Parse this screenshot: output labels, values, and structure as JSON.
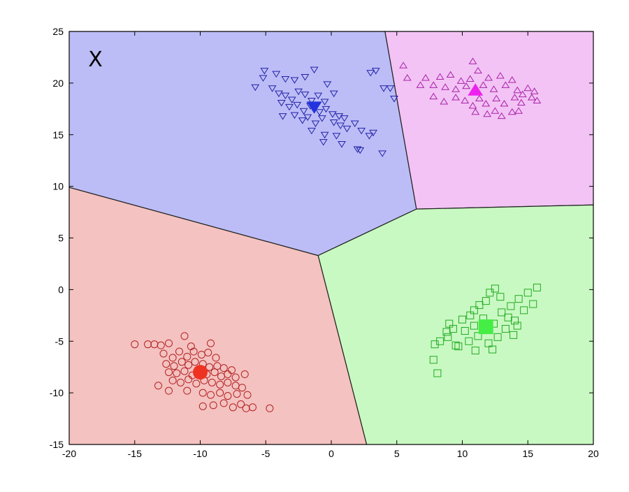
{
  "chart_data": {
    "type": "scatter",
    "title": "",
    "xlabel": "",
    "ylabel": "",
    "xlim": [
      -20,
      20
    ],
    "ylim": [
      -15,
      25
    ],
    "xticks": [
      "-20",
      "-15",
      "-10",
      "-5",
      "0",
      "5",
      "10",
      "15",
      "20"
    ],
    "yticks": [
      "-15",
      "-10",
      "-5",
      "0",
      "5",
      "10",
      "15",
      "20",
      "25"
    ],
    "grid": false,
    "legend": "none",
    "annotation": {
      "text": "X",
      "x": -18,
      "y": 22.3
    },
    "regions": [
      {
        "name": "red",
        "color": "#f4c2c0",
        "polygon": [
          [
            -20,
            9.9
          ],
          [
            -1,
            3.3
          ],
          [
            2.7,
            -15
          ],
          [
            -20,
            -15
          ]
        ]
      },
      {
        "name": "blue",
        "color": "#bcbdf6",
        "polygon": [
          [
            -20,
            25
          ],
          [
            4.1,
            25
          ],
          [
            6.5,
            7.8
          ],
          [
            -1,
            3.3
          ],
          [
            -20,
            9.9
          ]
        ]
      },
      {
        "name": "magenta",
        "color": "#f2c3f4",
        "polygon": [
          [
            4.1,
            25
          ],
          [
            20,
            25
          ],
          [
            20,
            8.2
          ],
          [
            6.5,
            7.8
          ]
        ]
      },
      {
        "name": "green",
        "color": "#c9f9c2",
        "polygon": [
          [
            6.5,
            7.8
          ],
          [
            20,
            8.2
          ],
          [
            20,
            -15
          ],
          [
            2.7,
            -15
          ],
          [
            -1,
            3.3
          ]
        ]
      }
    ],
    "series": [
      {
        "color": "#b22222",
        "marker": "circle",
        "centroid": [
          -10,
          -8
        ],
        "points": [
          [
            -15,
            -5.3
          ],
          [
            -14,
            -5.3
          ],
          [
            -13.5,
            -5.3
          ],
          [
            -13,
            -5.4
          ],
          [
            -12.4,
            -5.2
          ],
          [
            -11.2,
            -4.5
          ],
          [
            -10.7,
            -5.5
          ],
          [
            -9.2,
            -5.2
          ],
          [
            -12.8,
            -6.2
          ],
          [
            -12.1,
            -6.6
          ],
          [
            -11.6,
            -6.0
          ],
          [
            -11.0,
            -6.5
          ],
          [
            -10.5,
            -6.0
          ],
          [
            -9.9,
            -6.3
          ],
          [
            -9.4,
            -6.1
          ],
          [
            -8.8,
            -6.6
          ],
          [
            -12.6,
            -7.2
          ],
          [
            -12.0,
            -7.4
          ],
          [
            -11.4,
            -7.0
          ],
          [
            -10.9,
            -7.3
          ],
          [
            -10.4,
            -7.0
          ],
          [
            -9.8,
            -7.2
          ],
          [
            -9.3,
            -7.5
          ],
          [
            -8.7,
            -7.4
          ],
          [
            -8.2,
            -7.6
          ],
          [
            -7.6,
            -7.8
          ],
          [
            -12.4,
            -8.0
          ],
          [
            -11.8,
            -8.1
          ],
          [
            -11.2,
            -7.9
          ],
          [
            -10.6,
            -8.3
          ],
          [
            -9.5,
            -8.2
          ],
          [
            -8.9,
            -8.0
          ],
          [
            -8.4,
            -8.4
          ],
          [
            -7.9,
            -8.2
          ],
          [
            -7.3,
            -8.5
          ],
          [
            -6.6,
            -8.2
          ],
          [
            -12.1,
            -8.8
          ],
          [
            -11.5,
            -9.0
          ],
          [
            -10.9,
            -8.7
          ],
          [
            -10.3,
            -9.1
          ],
          [
            -9.7,
            -8.8
          ],
          [
            -9.1,
            -9.0
          ],
          [
            -8.5,
            -9.2
          ],
          [
            -7.9,
            -9.0
          ],
          [
            -7.3,
            -9.3
          ],
          [
            -6.8,
            -9.5
          ],
          [
            -13.2,
            -9.3
          ],
          [
            -12.4,
            -9.8
          ],
          [
            -11.0,
            -9.8
          ],
          [
            -9.8,
            -10.0
          ],
          [
            -9.2,
            -10.2
          ],
          [
            -8.5,
            -10.0
          ],
          [
            -7.9,
            -10.3
          ],
          [
            -7.2,
            -10.1
          ],
          [
            -6.4,
            -10.2
          ],
          [
            -9.0,
            -11.2
          ],
          [
            -8.2,
            -11.0
          ],
          [
            -7.5,
            -11.4
          ],
          [
            -6.9,
            -11.1
          ],
          [
            -6.5,
            -11.5
          ],
          [
            -6.0,
            -11.4
          ],
          [
            -4.7,
            -11.5
          ],
          [
            -9.8,
            -11.3
          ]
        ]
      },
      {
        "color": "#2222aa",
        "marker": "triangle-down",
        "centroid": [
          -1.3,
          17.7
        ],
        "points": [
          [
            -5.8,
            19.6
          ],
          [
            -5.2,
            20.5
          ],
          [
            -5.1,
            21.2
          ],
          [
            -4.2,
            20.9
          ],
          [
            -3.5,
            20.4
          ],
          [
            -2.8,
            20.3
          ],
          [
            -2.0,
            20.6
          ],
          [
            -1.3,
            21.3
          ],
          [
            -0.3,
            19.9
          ],
          [
            0.2,
            19.0
          ],
          [
            3.4,
            21.2
          ],
          [
            3.0,
            21.0
          ],
          [
            4.0,
            19.5
          ],
          [
            4.5,
            19.5
          ],
          [
            4.8,
            18.5
          ],
          [
            -4.5,
            19.5
          ],
          [
            -4.0,
            19.0
          ],
          [
            -3.5,
            18.8
          ],
          [
            -3.0,
            18.4
          ],
          [
            -2.5,
            19.2
          ],
          [
            -2.0,
            18.9
          ],
          [
            -1.5,
            18.3
          ],
          [
            -1.0,
            18.8
          ],
          [
            -0.5,
            18.2
          ],
          [
            -3.8,
            18.1
          ],
          [
            -3.2,
            17.7
          ],
          [
            -2.6,
            17.9
          ],
          [
            -2.1,
            17.3
          ],
          [
            -1.6,
            17.8
          ],
          [
            -0.9,
            17.2
          ],
          [
            -0.4,
            17.5
          ],
          [
            0.1,
            17.0
          ],
          [
            0.6,
            16.8
          ],
          [
            1.0,
            16.6
          ],
          [
            -2.8,
            16.9
          ],
          [
            -2.2,
            16.4
          ],
          [
            -1.8,
            16.7
          ],
          [
            -1.2,
            16.1
          ],
          [
            -0.7,
            16.6
          ],
          [
            0.2,
            16.2
          ],
          [
            0.7,
            15.9
          ],
          [
            1.2,
            15.6
          ],
          [
            1.8,
            16.1
          ],
          [
            2.3,
            15.4
          ],
          [
            -1.5,
            15.4
          ],
          [
            -0.5,
            15.0
          ],
          [
            0.4,
            14.9
          ],
          [
            2.9,
            14.9
          ],
          [
            3.2,
            15.2
          ],
          [
            -0.6,
            14.3
          ],
          [
            0.8,
            14.1
          ],
          [
            2.0,
            13.6
          ],
          [
            2.2,
            13.5
          ],
          [
            3.9,
            13.2
          ],
          [
            -3.7,
            16.8
          ]
        ]
      },
      {
        "color": "#aa22aa",
        "marker": "triangle-up",
        "centroid": [
          11,
          19.3
        ],
        "points": [
          [
            5.5,
            21.7
          ],
          [
            5.8,
            20.5
          ],
          [
            6.8,
            19.8
          ],
          [
            7.2,
            20.5
          ],
          [
            7.8,
            19.8
          ],
          [
            8.3,
            20.6
          ],
          [
            8.7,
            19.6
          ],
          [
            9.1,
            20.8
          ],
          [
            9.5,
            19.4
          ],
          [
            9.9,
            20.2
          ],
          [
            10.3,
            19.7
          ],
          [
            10.6,
            20.4
          ],
          [
            10.8,
            22.1
          ],
          [
            11.2,
            21.2
          ],
          [
            11.6,
            19.8
          ],
          [
            12.0,
            20.5
          ],
          [
            12.4,
            19.4
          ],
          [
            12.9,
            20.7
          ],
          [
            13.3,
            19.8
          ],
          [
            13.8,
            20.3
          ],
          [
            14.2,
            19.3
          ],
          [
            14.6,
            18.9
          ],
          [
            15.0,
            19.5
          ],
          [
            15.3,
            18.6
          ],
          [
            15.7,
            18.3
          ],
          [
            7.8,
            18.7
          ],
          [
            8.6,
            18.2
          ],
          [
            9.5,
            18.6
          ],
          [
            10.2,
            18.3
          ],
          [
            10.8,
            17.8
          ],
          [
            11.3,
            18.5
          ],
          [
            11.8,
            18.0
          ],
          [
            12.6,
            18.5
          ],
          [
            13.2,
            18.0
          ],
          [
            14.0,
            18.6
          ],
          [
            14.5,
            18.1
          ],
          [
            11.9,
            17.0
          ],
          [
            12.5,
            17.3
          ],
          [
            13.0,
            16.8
          ],
          [
            13.8,
            17.2
          ],
          [
            14.3,
            17.3
          ],
          [
            11.0,
            17.2
          ],
          [
            15.5,
            19.2
          ]
        ]
      },
      {
        "color": "#22aa22",
        "marker": "square",
        "centroid": [
          11.8,
          -3.6
        ],
        "points": [
          [
            7.8,
            -6.8
          ],
          [
            8.1,
            -8.1
          ],
          [
            7.9,
            -5.3
          ],
          [
            8.3,
            -5.0
          ],
          [
            8.9,
            -4.6
          ],
          [
            9.3,
            -3.8
          ],
          [
            9.7,
            -5.5
          ],
          [
            10.2,
            -4.0
          ],
          [
            10.5,
            -5.0
          ],
          [
            10.9,
            -3.5
          ],
          [
            11.2,
            -4.5
          ],
          [
            11.6,
            -2.8
          ],
          [
            12.0,
            -5.2
          ],
          [
            12.4,
            -3.3
          ],
          [
            12.7,
            -4.6
          ],
          [
            13.0,
            -2.2
          ],
          [
            13.3,
            -3.8
          ],
          [
            13.7,
            -1.6
          ],
          [
            14.0,
            -3.0
          ],
          [
            14.3,
            -0.9
          ],
          [
            14.7,
            -2.0
          ],
          [
            15.0,
            -0.3
          ],
          [
            15.4,
            -1.4
          ],
          [
            15.7,
            0.2
          ],
          [
            12.1,
            -0.3
          ],
          [
            12.5,
            0.1
          ],
          [
            12.9,
            -0.7
          ],
          [
            11.3,
            -1.5
          ],
          [
            10.9,
            -2.0
          ],
          [
            11.8,
            -1.1
          ],
          [
            9.0,
            -3.3
          ],
          [
            10.0,
            -2.9
          ],
          [
            13.5,
            -2.7
          ],
          [
            14.2,
            -3.5
          ],
          [
            13.9,
            -4.4
          ],
          [
            12.3,
            -5.8
          ],
          [
            11.0,
            -5.9
          ],
          [
            9.5,
            -5.4
          ],
          [
            8.8,
            -4.1
          ],
          [
            10.6,
            -2.5
          ]
        ]
      }
    ]
  }
}
